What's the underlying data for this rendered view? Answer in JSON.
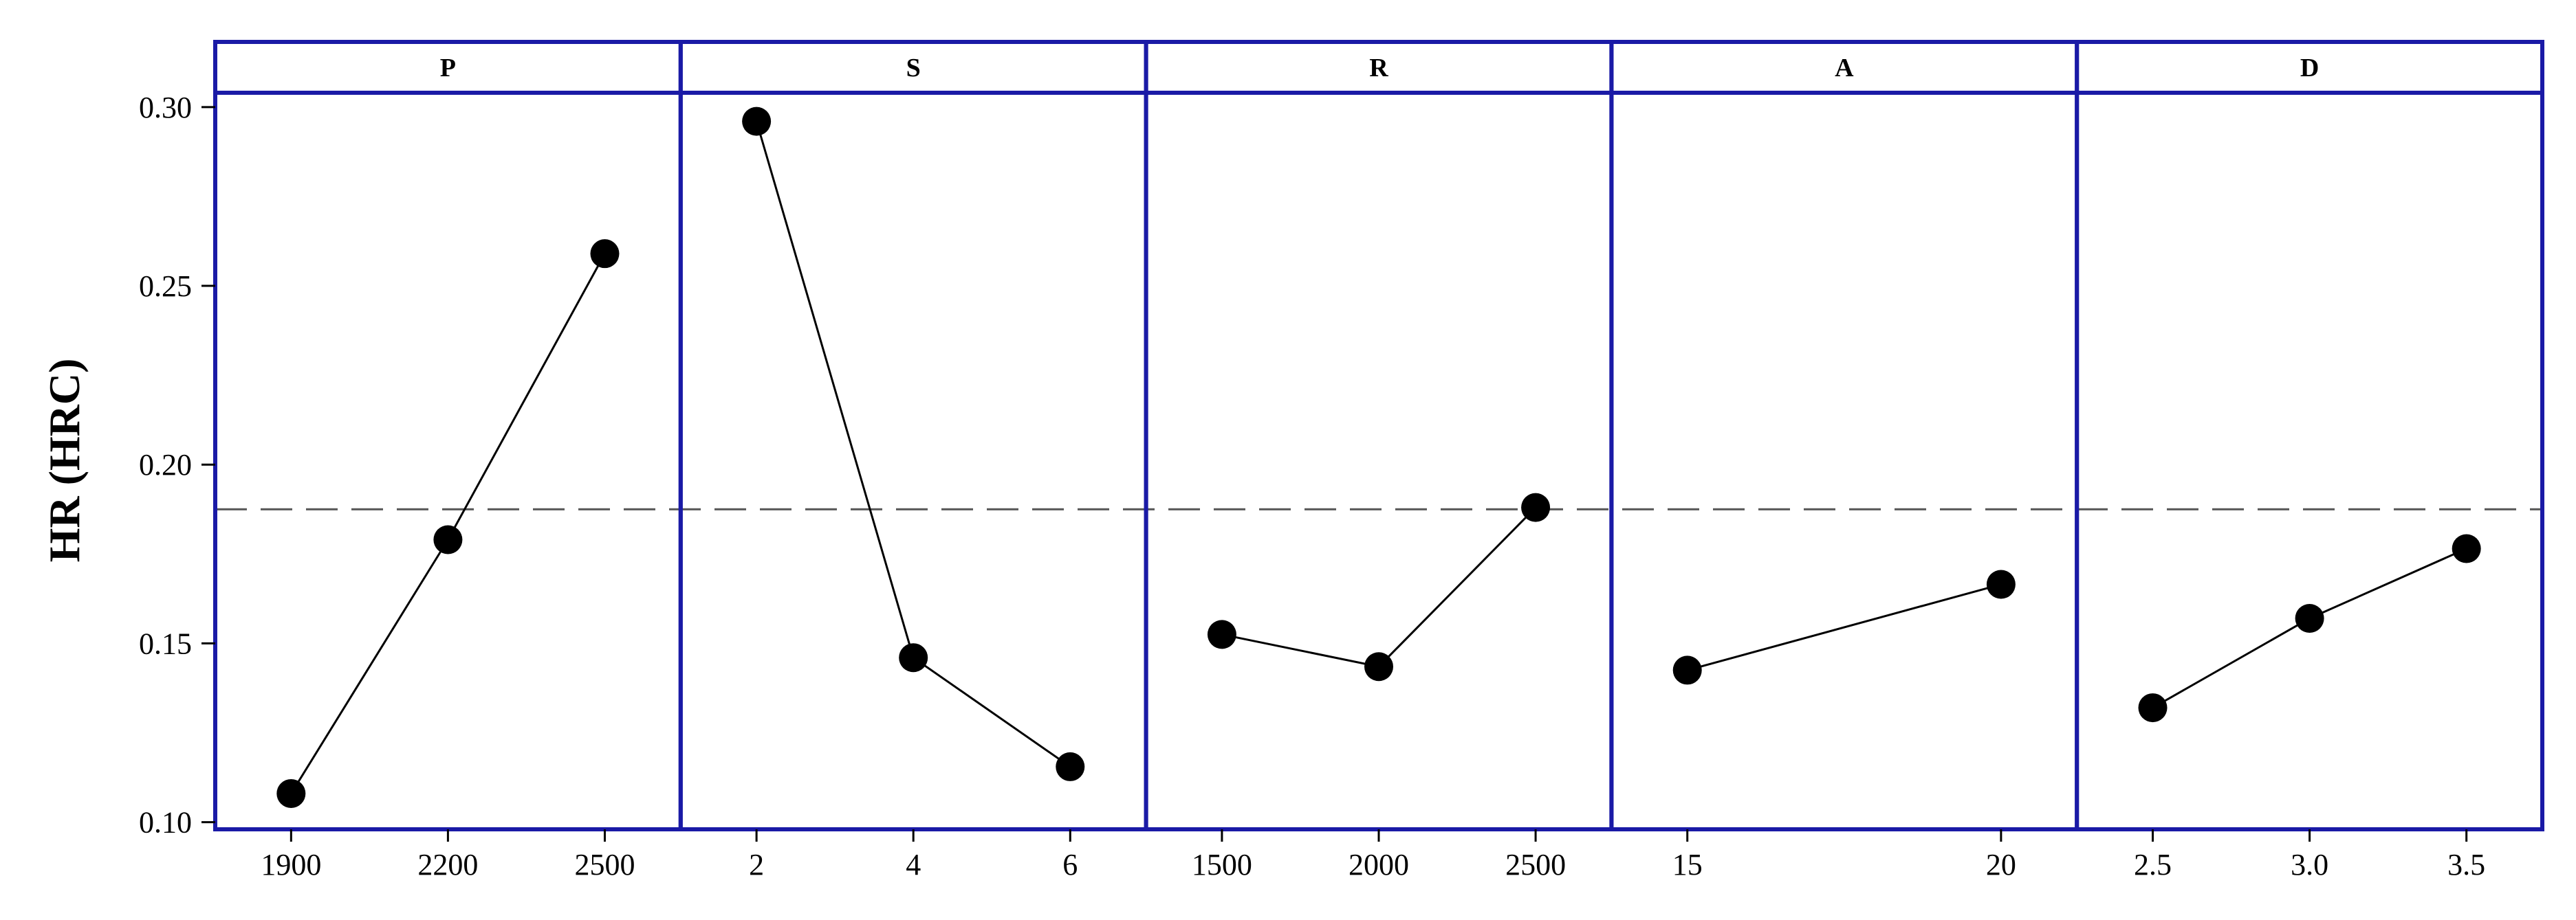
{
  "chart_data": {
    "type": "line",
    "ylabel": "HR (HRC)",
    "ylim": [
      0.098,
      0.304
    ],
    "yticks": [
      "0.10",
      "0.15",
      "0.20",
      "0.25",
      "0.30"
    ],
    "reference_line": 0.1875,
    "grid": false,
    "panels": [
      {
        "name": "P",
        "categories": [
          "1900",
          "2200",
          "2500"
        ],
        "values": [
          0.108,
          0.179,
          0.259
        ]
      },
      {
        "name": "S",
        "categories": [
          "2",
          "4",
          "6"
        ],
        "values": [
          0.296,
          0.146,
          0.1155
        ]
      },
      {
        "name": "R",
        "categories": [
          "1500",
          "2000",
          "2500"
        ],
        "values": [
          0.1525,
          0.1435,
          0.188
        ]
      },
      {
        "name": "A",
        "categories": [
          "15",
          "20"
        ],
        "values": [
          0.1425,
          0.1665
        ]
      },
      {
        "name": "D",
        "categories": [
          "2.5",
          "3.0",
          "3.5"
        ],
        "values": [
          0.132,
          0.157,
          0.1765
        ]
      }
    ]
  }
}
